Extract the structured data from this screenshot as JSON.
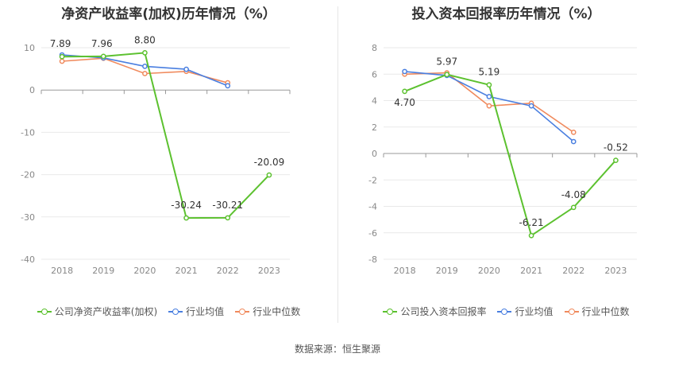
{
  "source_text": "数据来源：恒生聚源",
  "colors": {
    "company": "#5cc12f",
    "avg": "#4a7fe0",
    "median": "#f08a5d",
    "grid": "#e9e9e9",
    "axis": "#999999"
  },
  "chart_data": [
    {
      "type": "line",
      "title": "净资产收益率(加权)历年情况（%）",
      "categories": [
        "2018",
        "2019",
        "2020",
        "2021",
        "2022",
        "2023"
      ],
      "ylim": [
        -40,
        10
      ],
      "yticks": [
        10,
        0,
        -10,
        -20,
        -30,
        -40
      ],
      "grid": true,
      "legend_position": "bottom",
      "series": [
        {
          "name": "公司净资产收益率(加权)",
          "color_key": "company",
          "values": [
            7.89,
            7.96,
            8.8,
            -30.24,
            -30.21,
            -20.09
          ],
          "labels": [
            "7.89",
            "7.96",
            "8.80",
            "-30.24",
            "-30.21",
            "-20.09"
          ]
        },
        {
          "name": "行业均值",
          "color_key": "avg",
          "values": [
            8.3,
            7.6,
            5.6,
            4.9,
            1.0,
            null
          ]
        },
        {
          "name": "行业中位数",
          "color_key": "median",
          "values": [
            6.8,
            7.5,
            3.9,
            4.4,
            1.7,
            null
          ]
        }
      ]
    },
    {
      "type": "line",
      "title": "投入资本回报率历年情况（%）",
      "categories": [
        "2018",
        "2019",
        "2020",
        "2021",
        "2022",
        "2023"
      ],
      "ylim": [
        -8,
        8
      ],
      "yticks": [
        8,
        6,
        4,
        2,
        0,
        -2,
        -4,
        -6,
        -8
      ],
      "grid": true,
      "legend_position": "bottom",
      "series": [
        {
          "name": "公司投入资本回报率",
          "color_key": "company",
          "values": [
            4.7,
            5.97,
            5.19,
            -6.21,
            -4.08,
            -0.52
          ],
          "labels": [
            "4.70",
            "5.97",
            "5.19",
            "-6.21",
            "-4.08",
            "-0.52"
          ]
        },
        {
          "name": "行业均值",
          "color_key": "avg",
          "values": [
            6.2,
            5.9,
            4.3,
            3.6,
            0.9,
            null
          ]
        },
        {
          "name": "行业中位数",
          "color_key": "median",
          "values": [
            6.0,
            6.1,
            3.6,
            3.8,
            1.6,
            null
          ]
        }
      ]
    }
  ]
}
